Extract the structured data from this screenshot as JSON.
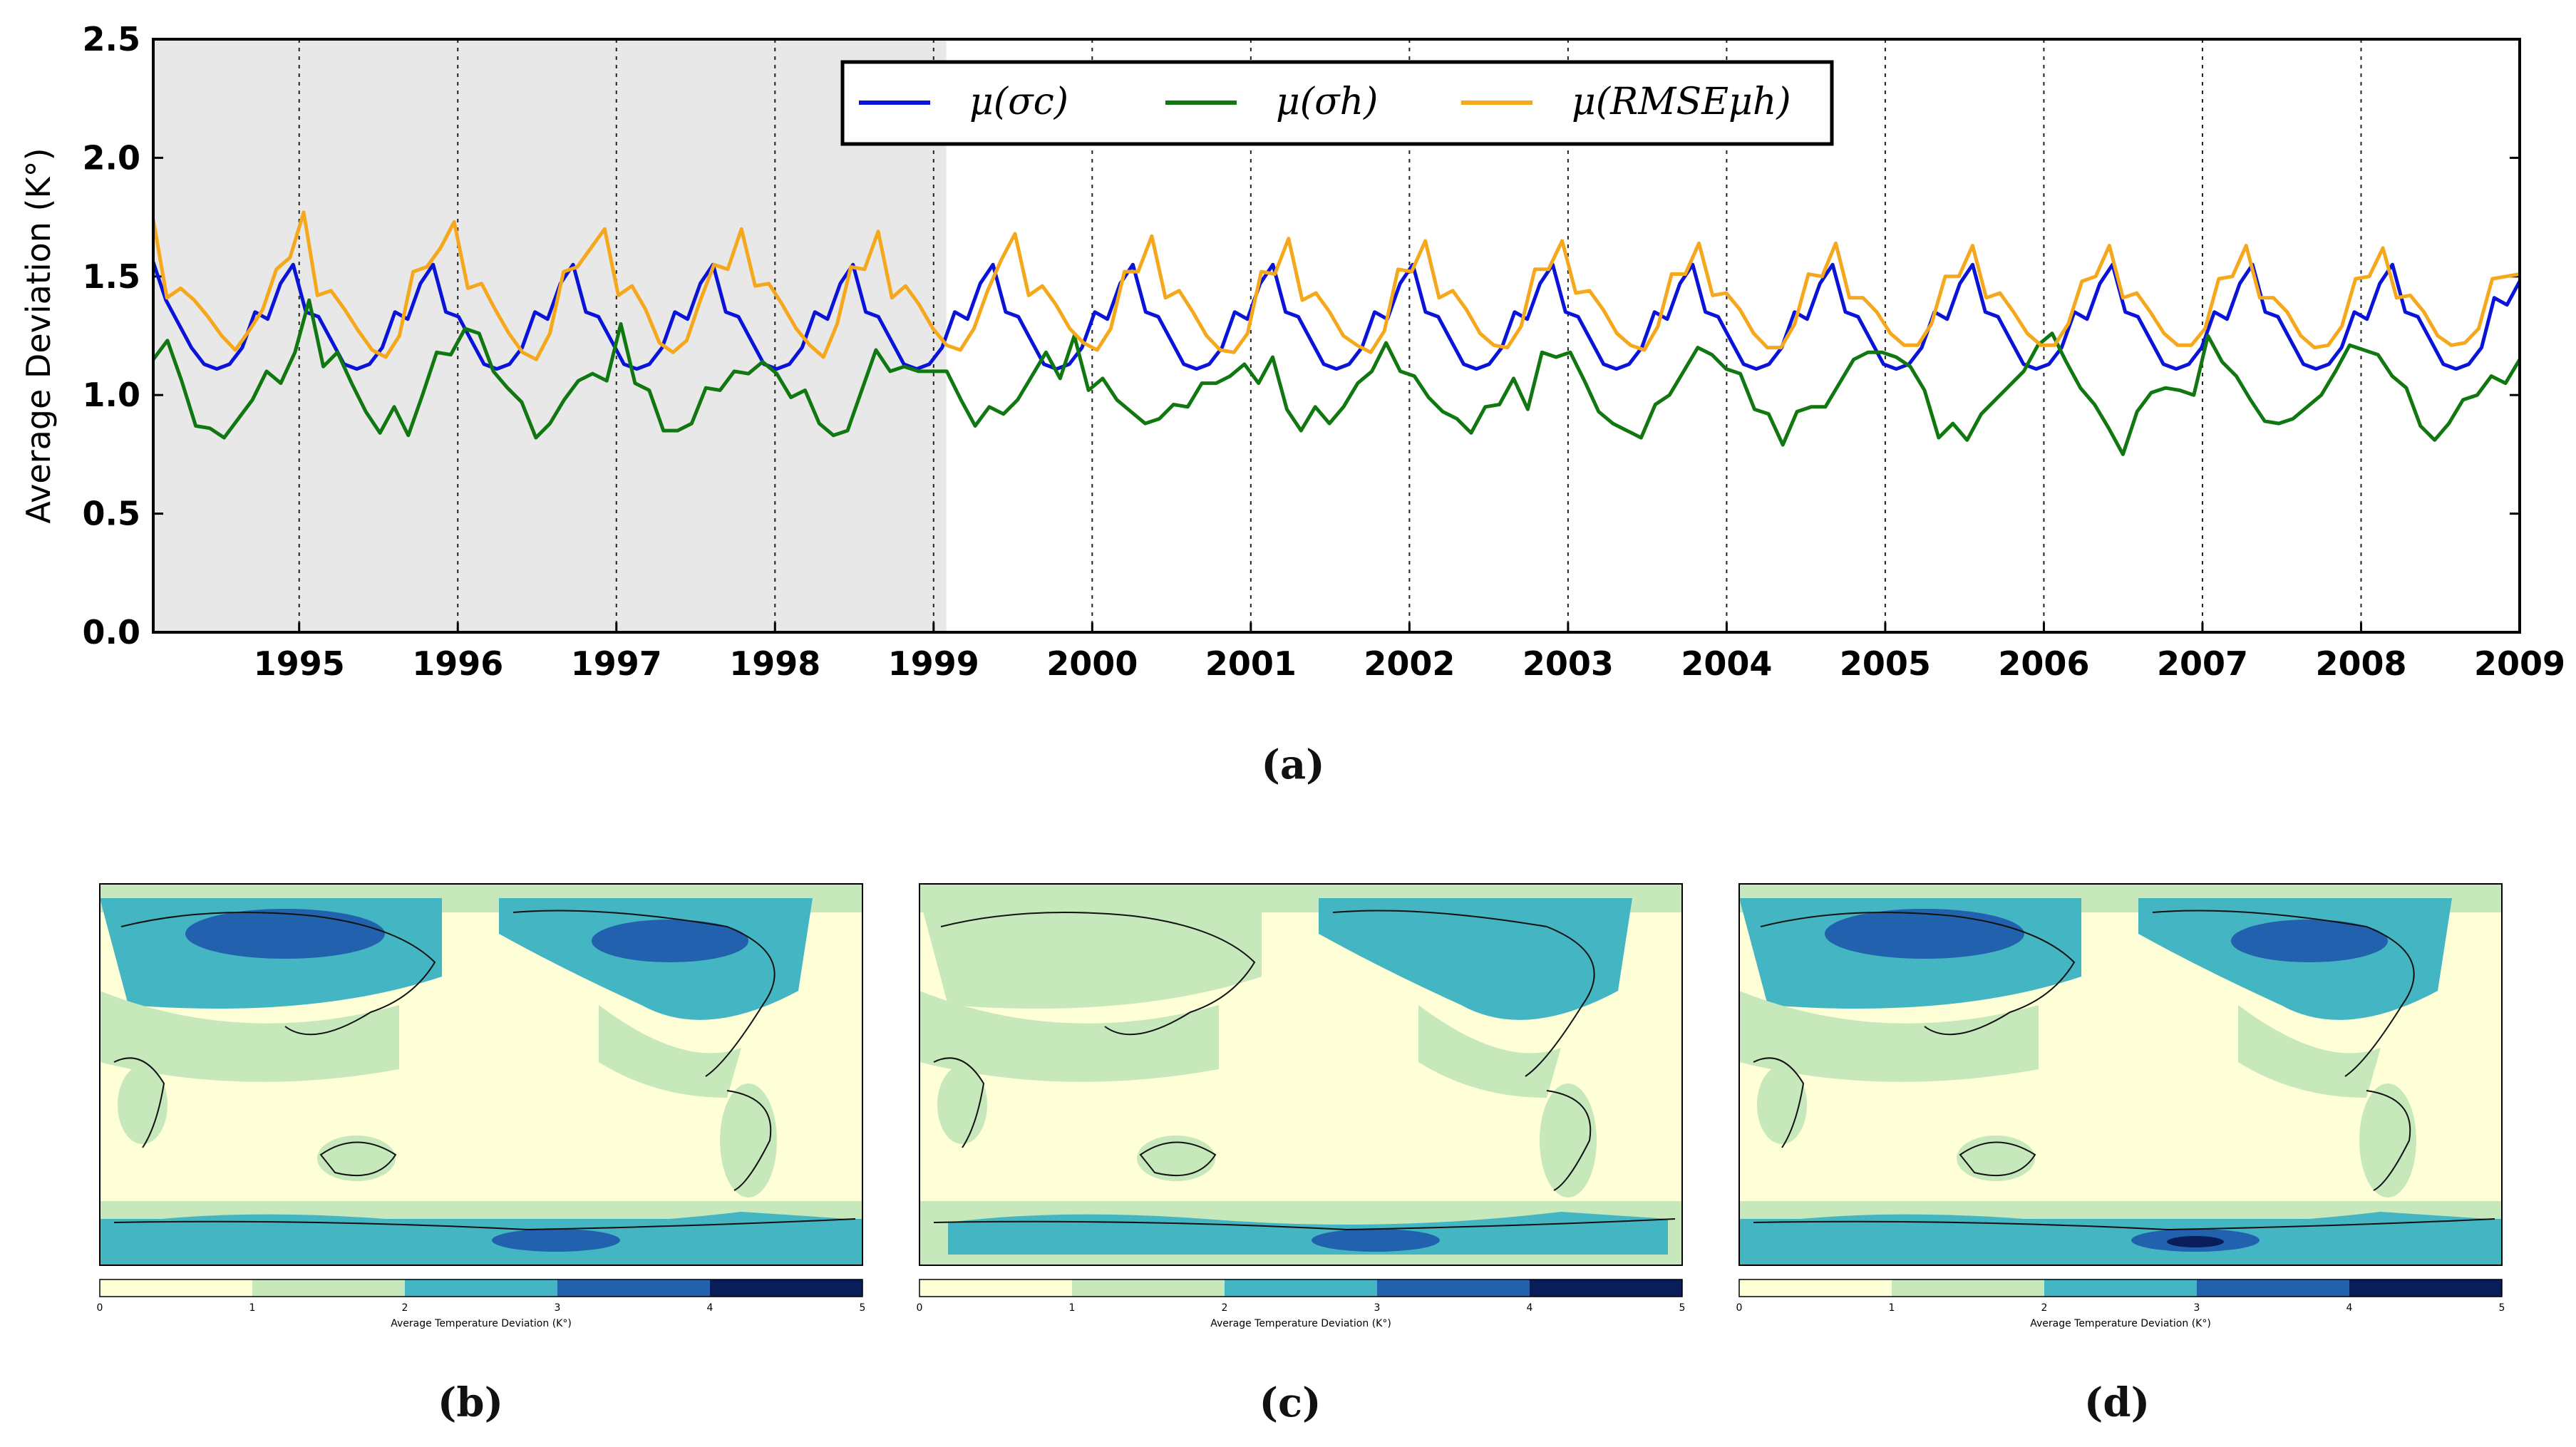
{
  "chart_data": [
    {
      "type": "line",
      "panel": "(a)",
      "ylabel": "Average Deviation (K°)",
      "xlabel": "",
      "ylim": [
        0.0,
        2.5
      ],
      "xlim": [
        1994.08,
        2009.0
      ],
      "yticks": [
        "0.0",
        "0.5",
        "1.0",
        "1.5",
        "2.0",
        "2.5"
      ],
      "xticks": [
        "1995",
        "1996",
        "1997",
        "1998",
        "1999",
        "2000",
        "2001",
        "2002",
        "2003",
        "2004",
        "2005",
        "2006",
        "2007",
        "2008",
        "2009"
      ],
      "grid": "vertical dotted lines at each January",
      "training_shade": {
        "from": 1994.08,
        "to": 1999.08,
        "color": "#e8e8e8"
      },
      "legend": {
        "placement": "top-center",
        "entries": [
          "μ(σc)",
          "μ(σh)",
          "μ(RMSEμh)"
        ]
      },
      "series": [
        {
          "name": "μ(σc)",
          "color": "#0a14d8",
          "values": [
            1.56,
            1.4,
            1.3,
            1.2,
            1.13,
            1.11,
            1.13,
            1.2,
            1.35,
            1.32,
            1.47,
            1.55,
            1.35,
            1.33,
            1.23,
            1.13,
            1.11,
            1.13,
            1.2,
            1.35,
            1.32,
            1.47,
            1.55,
            1.35,
            1.33,
            1.23,
            1.13,
            1.11,
            1.13,
            1.2,
            1.35,
            1.32,
            1.47,
            1.55,
            1.35,
            1.33,
            1.23,
            1.13,
            1.11,
            1.13,
            1.2,
            1.35,
            1.32,
            1.47,
            1.55,
            1.35,
            1.33,
            1.23,
            1.13,
            1.11,
            1.13,
            1.2,
            1.35,
            1.32,
            1.47,
            1.55,
            1.35,
            1.33,
            1.23,
            1.13,
            1.11,
            1.13,
            1.2,
            1.35,
            1.32,
            1.47,
            1.55,
            1.35,
            1.33,
            1.23,
            1.13,
            1.11,
            1.13,
            1.2,
            1.35,
            1.32,
            1.47,
            1.55,
            1.35,
            1.33,
            1.23,
            1.13,
            1.11,
            1.13,
            1.2,
            1.35,
            1.32,
            1.47,
            1.55,
            1.35,
            1.33,
            1.23,
            1.13,
            1.11,
            1.13,
            1.2,
            1.35,
            1.32,
            1.47,
            1.55,
            1.35,
            1.33,
            1.23,
            1.13,
            1.11,
            1.13,
            1.2,
            1.35,
            1.32,
            1.47,
            1.55,
            1.35,
            1.33,
            1.23,
            1.13,
            1.11,
            1.13,
            1.2,
            1.35,
            1.32,
            1.47,
            1.55,
            1.35,
            1.33,
            1.23,
            1.13,
            1.11,
            1.13,
            1.2,
            1.35,
            1.32,
            1.47,
            1.55,
            1.35,
            1.33,
            1.23,
            1.13,
            1.11,
            1.13,
            1.2,
            1.35,
            1.32,
            1.47,
            1.55,
            1.35,
            1.33,
            1.23,
            1.13,
            1.11,
            1.13,
            1.2,
            1.35,
            1.32,
            1.47,
            1.55,
            1.35,
            1.33,
            1.23,
            1.13,
            1.11,
            1.13,
            1.2,
            1.35,
            1.32,
            1.47,
            1.55,
            1.35,
            1.33,
            1.23,
            1.13,
            1.11,
            1.13,
            1.2,
            1.35,
            1.32,
            1.47,
            1.55,
            1.35,
            1.33,
            1.23,
            1.13,
            1.11,
            1.13,
            1.2,
            1.41,
            1.38,
            1.48
          ]
        },
        {
          "name": "μ(σh)",
          "color": "#117711",
          "values": [
            1.15,
            1.23,
            1.06,
            0.87,
            0.86,
            0.82,
            0.9,
            0.98,
            1.1,
            1.05,
            1.18,
            1.4,
            1.12,
            1.18,
            1.05,
            0.93,
            0.84,
            0.95,
            0.83,
            1.0,
            1.18,
            1.17,
            1.28,
            1.26,
            1.1,
            1.03,
            0.97,
            0.82,
            0.88,
            0.98,
            1.06,
            1.09,
            1.06,
            1.3,
            1.05,
            1.02,
            0.85,
            0.85,
            0.88,
            1.03,
            1.02,
            1.1,
            1.09,
            1.14,
            1.09,
            0.99,
            1.02,
            0.88,
            0.83,
            0.85,
            1.02,
            1.19,
            1.1,
            1.12,
            1.1,
            1.1,
            1.1,
            0.98,
            0.87,
            0.95,
            0.92,
            0.98,
            1.08,
            1.18,
            1.07,
            1.25,
            1.02,
            1.07,
            0.98,
            0.93,
            0.88,
            0.9,
            0.96,
            0.95,
            1.05,
            1.05,
            1.08,
            1.13,
            1.05,
            1.16,
            0.94,
            0.85,
            0.95,
            0.88,
            0.95,
            1.05,
            1.1,
            1.22,
            1.1,
            1.08,
            0.99,
            0.93,
            0.9,
            0.84,
            0.95,
            0.96,
            1.07,
            0.94,
            1.18,
            1.16,
            1.18,
            1.06,
            0.93,
            0.88,
            0.85,
            0.82,
            0.96,
            1.0,
            1.1,
            1.2,
            1.17,
            1.11,
            1.09,
            0.94,
            0.92,
            0.79,
            0.93,
            0.95,
            0.95,
            1.05,
            1.15,
            1.18,
            1.18,
            1.16,
            1.12,
            1.02,
            0.82,
            0.88,
            0.81,
            0.92,
            0.98,
            1.04,
            1.1,
            1.21,
            1.26,
            1.14,
            1.03,
            0.96,
            0.86,
            0.75,
            0.93,
            1.01,
            1.03,
            1.02,
            1.0,
            1.25,
            1.14,
            1.08,
            0.98,
            0.89,
            0.88,
            0.9,
            0.95,
            1.0,
            1.1,
            1.21,
            1.19,
            1.17,
            1.08,
            1.03,
            0.87,
            0.81,
            0.88,
            0.98,
            1.0,
            1.08,
            1.05,
            1.15
          ]
        },
        {
          "name": "μ(RMSEμh)",
          "color": "#f5a81c",
          "values": [
            1.74,
            1.41,
            1.45,
            1.4,
            1.33,
            1.25,
            1.19,
            1.27,
            1.36,
            1.53,
            1.58,
            1.77,
            1.42,
            1.44,
            1.36,
            1.27,
            1.19,
            1.16,
            1.25,
            1.52,
            1.54,
            1.62,
            1.73,
            1.45,
            1.47,
            1.36,
            1.26,
            1.18,
            1.15,
            1.26,
            1.52,
            1.54,
            1.62,
            1.7,
            1.42,
            1.46,
            1.36,
            1.22,
            1.18,
            1.23,
            1.4,
            1.55,
            1.53,
            1.7,
            1.46,
            1.47,
            1.38,
            1.28,
            1.21,
            1.16,
            1.3,
            1.54,
            1.53,
            1.69,
            1.41,
            1.46,
            1.38,
            1.28,
            1.21,
            1.19,
            1.28,
            1.44,
            1.57,
            1.68,
            1.42,
            1.46,
            1.38,
            1.28,
            1.22,
            1.19,
            1.28,
            1.52,
            1.52,
            1.67,
            1.41,
            1.44,
            1.35,
            1.25,
            1.19,
            1.18,
            1.26,
            1.52,
            1.51,
            1.66,
            1.4,
            1.43,
            1.35,
            1.25,
            1.21,
            1.18,
            1.27,
            1.53,
            1.52,
            1.65,
            1.41,
            1.44,
            1.36,
            1.26,
            1.21,
            1.2,
            1.29,
            1.53,
            1.53,
            1.65,
            1.43,
            1.44,
            1.36,
            1.26,
            1.21,
            1.19,
            1.29,
            1.51,
            1.51,
            1.64,
            1.42,
            1.43,
            1.36,
            1.26,
            1.2,
            1.2,
            1.3,
            1.51,
            1.5,
            1.64,
            1.41,
            1.41,
            1.35,
            1.26,
            1.21,
            1.21,
            1.3,
            1.5,
            1.5,
            1.63,
            1.41,
            1.43,
            1.35,
            1.26,
            1.21,
            1.21,
            1.3,
            1.48,
            1.5,
            1.63,
            1.41,
            1.43,
            1.35,
            1.26,
            1.21,
            1.21,
            1.28,
            1.49,
            1.5,
            1.63,
            1.41,
            1.41,
            1.35,
            1.25,
            1.2,
            1.21,
            1.29,
            1.49,
            1.5,
            1.62,
            1.41,
            1.42,
            1.35,
            1.25,
            1.21,
            1.22,
            1.28,
            1.49,
            1.5,
            1.51
          ]
        }
      ]
    }
  ],
  "captions": {
    "a": "(a)",
    "b": "(b)",
    "c": "(c)",
    "d": "(d)"
  },
  "maps": [
    {
      "panel": "(b)",
      "colorbar_label": "Average Temperature Deviation (K°)",
      "colorbar_ticks": [
        "0",
        "1",
        "2",
        "3",
        "4",
        "5"
      ],
      "colorbar_colors": [
        "#feffd6",
        "#c6e8bb",
        "#43b5c3",
        "#2261ad",
        "#0a1d5b"
      ]
    },
    {
      "panel": "(c)",
      "colorbar_label": "Average Temperature Deviation (K°)",
      "colorbar_ticks": [
        "0",
        "1",
        "2",
        "3",
        "4",
        "5"
      ],
      "colorbar_colors": [
        "#feffd6",
        "#c6e8bb",
        "#43b5c3",
        "#2261ad",
        "#0a1d5b"
      ]
    },
    {
      "panel": "(d)",
      "colorbar_label": "Average Temperature Deviation (K°)",
      "colorbar_ticks": [
        "0",
        "1",
        "2",
        "3",
        "4",
        "5"
      ],
      "colorbar_colors": [
        "#feffd6",
        "#c6e8bb",
        "#43b5c3",
        "#2261ad",
        "#0a1d5b"
      ]
    }
  ]
}
